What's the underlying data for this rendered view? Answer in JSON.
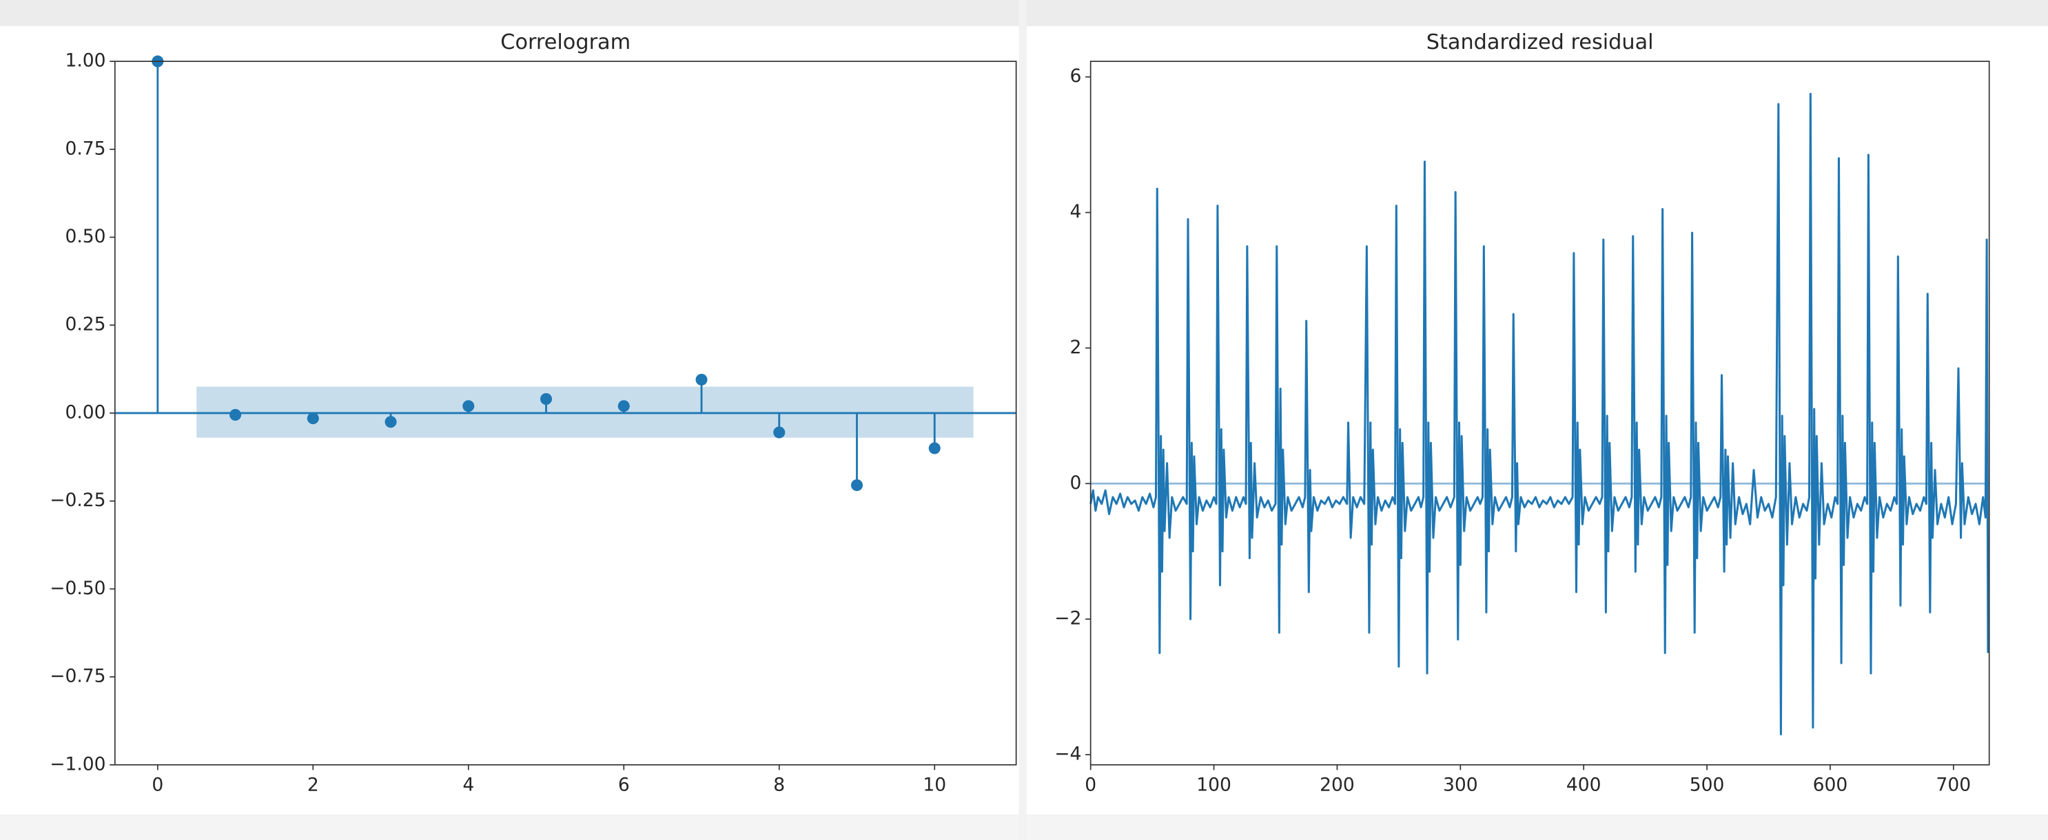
{
  "chart_data": [
    {
      "type": "stem",
      "title": "Correlogram",
      "color": "#1f77b4",
      "x": [
        0,
        1,
        2,
        3,
        4,
        5,
        6,
        7,
        8,
        9,
        10
      ],
      "values": [
        1,
        -0.005,
        -0.015,
        -0.025,
        0.02,
        0.04,
        0.02,
        0.095,
        -0.055,
        -0.205,
        -0.1
      ],
      "confidence_band": {
        "x": [
          0.5,
          10.5
        ],
        "upper": 0.075,
        "lower": -0.07
      },
      "xlim": [
        -0.55,
        11.05
      ],
      "ylim": [
        -1,
        1
      ],
      "xticks": [
        0,
        2,
        4,
        6,
        8,
        10
      ],
      "yticks": [
        {
          "value": -1,
          "label": "−1.00"
        },
        {
          "value": -0.75,
          "label": "−0.75"
        },
        {
          "value": -0.5,
          "label": "−0.50"
        },
        {
          "value": -0.25,
          "label": "−0.25"
        },
        {
          "value": 0,
          "label": "0.00"
        },
        {
          "value": 0.25,
          "label": "0.25"
        },
        {
          "value": 0.5,
          "label": "0.50"
        },
        {
          "value": 0.75,
          "label": "0.75"
        },
        {
          "value": 1,
          "label": "1.00"
        }
      ]
    },
    {
      "type": "line",
      "title": "Standardized residual",
      "color": "#1f77b4",
      "x": [
        0,
        2,
        4,
        6,
        9,
        12,
        15,
        18,
        21,
        24,
        27,
        30,
        33,
        36,
        39,
        42,
        45,
        48,
        51,
        53,
        54,
        56,
        57,
        58,
        59,
        60,
        62,
        64,
        66,
        69,
        72,
        75,
        78,
        79,
        81,
        82,
        83,
        84,
        86,
        88,
        91,
        94,
        97,
        100,
        102,
        103,
        105,
        106,
        107,
        108,
        110,
        112,
        115,
        118,
        121,
        124,
        126,
        127,
        129,
        130,
        131,
        133,
        135,
        138,
        141,
        144,
        147,
        150,
        151,
        153,
        154,
        155,
        156,
        158,
        160,
        163,
        166,
        169,
        172,
        174,
        175,
        177,
        178,
        179,
        181,
        184,
        187,
        190,
        193,
        196,
        199,
        202,
        205,
        208,
        209,
        211,
        213,
        216,
        219,
        222,
        224,
        226,
        227,
        228,
        229,
        231,
        233,
        236,
        239,
        242,
        245,
        247,
        248,
        250,
        251,
        252,
        253,
        255,
        257,
        260,
        263,
        266,
        268,
        270,
        271,
        273,
        274,
        275,
        276,
        278,
        280,
        283,
        286,
        289,
        292,
        295,
        296,
        298,
        299,
        300,
        301,
        303,
        305,
        308,
        311,
        314,
        316,
        318,
        319,
        321,
        322,
        323,
        324,
        326,
        328,
        331,
        334,
        337,
        340,
        342,
        343,
        345,
        346,
        347,
        349,
        352,
        355,
        358,
        361,
        364,
        367,
        370,
        373,
        376,
        379,
        382,
        385,
        388,
        391,
        392,
        394,
        395,
        396,
        397,
        399,
        401,
        404,
        407,
        410,
        413,
        415,
        416,
        418,
        419,
        420,
        421,
        423,
        425,
        428,
        431,
        434,
        437,
        439,
        440,
        442,
        443,
        444,
        445,
        447,
        449,
        452,
        455,
        458,
        461,
        463,
        464,
        466,
        467,
        468,
        469,
        471,
        473,
        476,
        479,
        482,
        485,
        487,
        488,
        490,
        491,
        492,
        493,
        495,
        497,
        500,
        503,
        506,
        509,
        511,
        512,
        514,
        515,
        516,
        517,
        519,
        521,
        523,
        526,
        529,
        532,
        535,
        538,
        541,
        544,
        547,
        550,
        553,
        556,
        558,
        560,
        561,
        562,
        563,
        565,
        567,
        569,
        572,
        575,
        578,
        581,
        583,
        584,
        586,
        587,
        588,
        589,
        591,
        593,
        595,
        598,
        601,
        604,
        606,
        607,
        609,
        610,
        611,
        612,
        614,
        616,
        619,
        622,
        625,
        628,
        630,
        631,
        633,
        634,
        635,
        636,
        638,
        640,
        643,
        646,
        649,
        652,
        654,
        655,
        657,
        658,
        659,
        660,
        662,
        664,
        667,
        670,
        673,
        676,
        678,
        679,
        681,
        682,
        683,
        685,
        687,
        690,
        693,
        696,
        699,
        702,
        704,
        706,
        707,
        709,
        712,
        715,
        718,
        721,
        724,
        726,
        727,
        728
      ],
      "values": [
        -0.3,
        -0.1,
        -0.4,
        -0.2,
        -0.3,
        -0.1,
        -0.45,
        -0.2,
        -0.3,
        -0.15,
        -0.35,
        -0.2,
        -0.3,
        -0.25,
        -0.4,
        -0.2,
        -0.3,
        -0.15,
        -0.35,
        -0.2,
        4.35,
        -2.5,
        0.7,
        -1.3,
        0.5,
        -0.7,
        0.3,
        -0.8,
        -0.2,
        -0.4,
        -0.3,
        -0.2,
        -0.3,
        3.9,
        -2.0,
        0.6,
        -1.0,
        0.4,
        -0.6,
        -0.2,
        -0.4,
        -0.25,
        -0.35,
        -0.2,
        -0.3,
        4.1,
        -1.5,
        0.8,
        -1.0,
        0.5,
        -0.5,
        -0.2,
        -0.4,
        -0.2,
        -0.35,
        -0.2,
        -0.3,
        3.5,
        -1.1,
        0.6,
        -0.8,
        0.3,
        -0.5,
        -0.2,
        -0.35,
        -0.25,
        -0.4,
        -0.3,
        3.5,
        -2.2,
        1.4,
        -0.9,
        0.5,
        -0.6,
        -0.2,
        -0.4,
        -0.3,
        -0.2,
        -0.35,
        -0.2,
        2.4,
        -1.6,
        0.2,
        -0.7,
        -0.2,
        -0.4,
        -0.25,
        -0.3,
        -0.2,
        -0.35,
        -0.25,
        -0.3,
        -0.2,
        -0.3,
        0.9,
        -0.8,
        -0.2,
        -0.35,
        -0.2,
        -0.3,
        3.5,
        -2.2,
        0.9,
        -0.9,
        0.5,
        -0.6,
        -0.2,
        -0.4,
        -0.25,
        -0.35,
        -0.2,
        -0.3,
        4.1,
        -2.7,
        0.8,
        -1.1,
        0.6,
        -0.7,
        -0.2,
        -0.4,
        -0.3,
        -0.2,
        -0.35,
        -0.2,
        4.75,
        -2.8,
        0.9,
        -1.3,
        0.6,
        -0.8,
        -0.2,
        -0.4,
        -0.3,
        -0.2,
        -0.35,
        -0.2,
        4.3,
        -2.3,
        0.9,
        -1.2,
        0.7,
        -0.7,
        -0.2,
        -0.4,
        -0.3,
        -0.2,
        -0.3,
        -0.2,
        3.5,
        -1.9,
        0.8,
        -1.0,
        0.5,
        -0.6,
        -0.2,
        -0.4,
        -0.3,
        -0.2,
        -0.35,
        -0.2,
        2.5,
        -1.0,
        0.3,
        -0.6,
        -0.2,
        -0.35,
        -0.25,
        -0.3,
        -0.2,
        -0.35,
        -0.25,
        -0.3,
        -0.2,
        -0.35,
        -0.25,
        -0.3,
        -0.2,
        -0.3,
        -0.2,
        3.4,
        -1.6,
        0.9,
        -0.9,
        0.5,
        -0.6,
        -0.2,
        -0.4,
        -0.3,
        -0.2,
        -0.3,
        -0.2,
        3.6,
        -1.9,
        1.0,
        -1.0,
        0.6,
        -0.7,
        -0.2,
        -0.4,
        -0.3,
        -0.2,
        -0.35,
        -0.2,
        3.65,
        -1.3,
        0.9,
        -0.9,
        0.5,
        -0.6,
        -0.2,
        -0.4,
        -0.3,
        -0.2,
        -0.35,
        -0.2,
        4.05,
        -2.5,
        1.0,
        -1.2,
        0.6,
        -0.7,
        -0.2,
        -0.4,
        -0.3,
        -0.2,
        -0.35,
        -0.2,
        3.7,
        -2.2,
        0.9,
        -1.1,
        0.6,
        -0.7,
        -0.2,
        -0.4,
        -0.3,
        -0.2,
        -0.35,
        -0.2,
        1.6,
        -1.3,
        0.5,
        -0.9,
        0.4,
        -0.8,
        0.3,
        -0.6,
        -0.2,
        -0.45,
        -0.3,
        -0.6,
        0.2,
        -0.5,
        -0.2,
        -0.4,
        -0.3,
        -0.5,
        -0.2,
        5.6,
        -3.7,
        1.0,
        -1.5,
        0.7,
        -0.9,
        0.3,
        -0.6,
        -0.2,
        -0.5,
        -0.3,
        -0.4,
        -0.2,
        5.75,
        -3.6,
        1.1,
        -1.4,
        0.7,
        -0.9,
        0.3,
        -0.6,
        -0.3,
        -0.5,
        -0.2,
        -0.3,
        4.8,
        -2.65,
        1.0,
        -1.2,
        0.6,
        -0.8,
        -0.2,
        -0.5,
        -0.3,
        -0.4,
        -0.2,
        -0.3,
        4.85,
        -2.8,
        0.9,
        -1.3,
        0.6,
        -0.8,
        -0.2,
        -0.5,
        -0.3,
        -0.4,
        -0.2,
        -0.3,
        3.35,
        -1.8,
        0.8,
        -0.9,
        0.4,
        -0.6,
        -0.2,
        -0.45,
        -0.3,
        -0.4,
        -0.2,
        -0.3,
        2.8,
        -1.9,
        0.6,
        -0.8,
        0.2,
        -0.6,
        -0.3,
        -0.5,
        -0.2,
        -0.6,
        -0.3,
        1.7,
        -0.8,
        0.3,
        -0.6,
        -0.2,
        -0.45,
        -0.3,
        -0.6,
        -0.2,
        -0.5,
        3.6,
        -2.5
      ],
      "reference_line": 0,
      "xlim": [
        0,
        729
      ],
      "ylim": [
        -4.15,
        6.23
      ],
      "xticks": [
        0,
        100,
        200,
        300,
        400,
        500,
        600,
        700
      ],
      "yticks": [
        {
          "value": -4,
          "label": "−4"
        },
        {
          "value": -2,
          "label": "−2"
        },
        0,
        2,
        4,
        6
      ]
    }
  ]
}
